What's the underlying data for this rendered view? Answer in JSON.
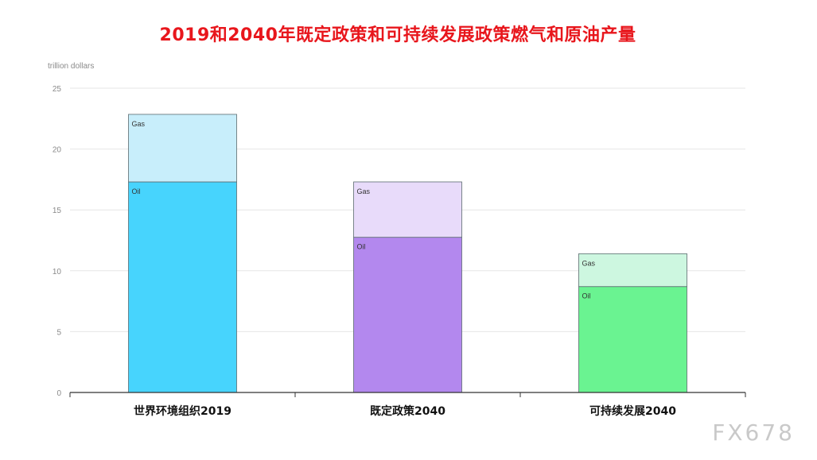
{
  "title": "2019和2040年既定政策和可持续发展政策燃气和原油产量",
  "watermark": "FX678",
  "chart_data": {
    "type": "bar",
    "stacked": true,
    "title": "2019和2040年既定政策和可持续发展政策燃气和原油产量",
    "ylabel": "trillion dollars",
    "ylim": [
      0,
      25
    ],
    "yticks": [
      0,
      5,
      10,
      15,
      20,
      25
    ],
    "grid": true,
    "categories": [
      "世界环境组织2019",
      "既定政策2040",
      "可持续发展2040"
    ],
    "series": [
      {
        "name": "Oil",
        "values": [
          17.3,
          12.75,
          8.7
        ]
      },
      {
        "name": "Gas",
        "values": [
          5.55,
          4.55,
          2.7
        ]
      }
    ],
    "colors": {
      "Oil": [
        "#47d4fd",
        "#b388ee",
        "#6af391"
      ],
      "Gas": [
        "#c8eefb",
        "#e8dbfa",
        "#cdf7e0"
      ]
    }
  }
}
